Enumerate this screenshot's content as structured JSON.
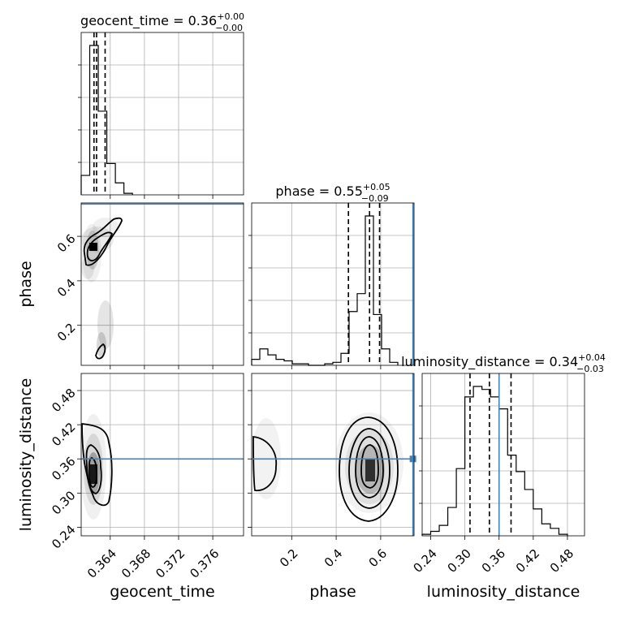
{
  "chart_data": {
    "type": "corner",
    "parameters": [
      {
        "name": "geocent_time",
        "range": [
          0.3606,
          0.3796
        ],
        "ticks": [
          0.364,
          0.368,
          0.372,
          0.376
        ],
        "truth": null,
        "title": "geocent_time = 0.36",
        "title_plus": "+0.00",
        "title_minus": "−0.00",
        "quantiles": [
          0.3621,
          0.3624,
          0.3634
        ]
      },
      {
        "name": "phase",
        "range": [
          0.02,
          0.75
        ],
        "ticks": [
          0.2,
          0.4,
          0.6
        ],
        "truth": 0.745,
        "title": "phase = 0.55",
        "title_plus": "+0.05",
        "title_minus": "−0.09",
        "quantiles": [
          0.455,
          0.55,
          0.595
        ]
      },
      {
        "name": "luminosity_distance",
        "range": [
          0.225,
          0.51
        ],
        "ticks": [
          0.24,
          0.3,
          0.36,
          0.42,
          0.48
        ],
        "truth": 0.36,
        "title": "luminosity_distance = 0.34",
        "title_plus": "+0.04",
        "title_minus": "−0.03",
        "quantiles": [
          0.309,
          0.343,
          0.381
        ]
      }
    ],
    "tick_labels": {
      "geocent_time": [
        "0.364",
        "0.368",
        "0.372",
        "0.376"
      ],
      "phase": [
        "0.2",
        "0.4",
        "0.6"
      ],
      "luminosity_distance": [
        "0.24",
        "0.30",
        "0.36",
        "0.42",
        "0.48"
      ]
    },
    "histograms": {
      "geocent_time": {
        "edges": [
          0.3606,
          0.3616,
          0.3626,
          0.3636,
          0.3646,
          0.3656,
          0.3666
        ],
        "counts": [
          0.13,
          1.0,
          0.56,
          0.21,
          0.08,
          0.01
        ]
      },
      "phase": {
        "edges": [
          0.02,
          0.0565,
          0.093,
          0.1295,
          0.166,
          0.2025,
          0.239,
          0.2755,
          0.312,
          0.3485,
          0.385,
          0.4215,
          0.458,
          0.4945,
          0.531,
          0.5675,
          0.604,
          0.6405,
          0.677
        ],
        "counts": [
          0.04,
          0.11,
          0.07,
          0.04,
          0.03,
          0.01,
          0.01,
          0.0,
          0.0,
          0.01,
          0.02,
          0.08,
          0.36,
          0.48,
          1.0,
          0.34,
          0.11,
          0.02
        ]
      },
      "luminosity_distance": {
        "edges": [
          0.225,
          0.24,
          0.255,
          0.27,
          0.285,
          0.3,
          0.315,
          0.33,
          0.345,
          0.36,
          0.375,
          0.39,
          0.405,
          0.42,
          0.435,
          0.45,
          0.465,
          0.48
        ],
        "counts": [
          0.01,
          0.03,
          0.07,
          0.19,
          0.45,
          0.93,
          1.0,
          0.98,
          0.93,
          0.85,
          0.54,
          0.43,
          0.31,
          0.18,
          0.08,
          0.05,
          0.01
        ]
      }
    },
    "truth_color": "#4682b4"
  }
}
